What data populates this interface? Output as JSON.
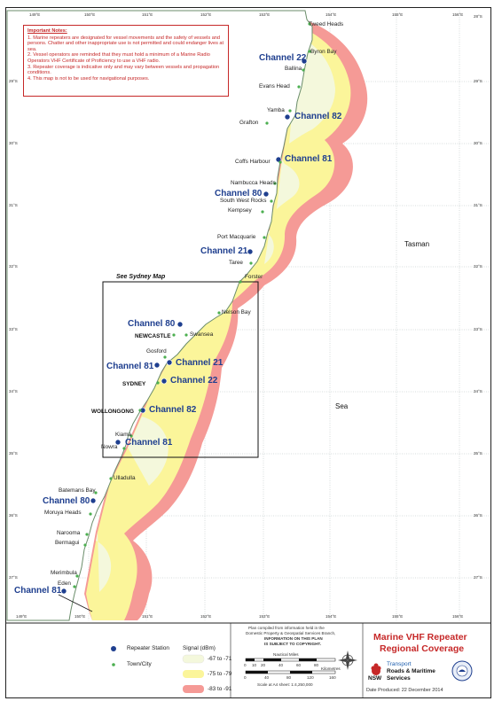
{
  "notes": {
    "heading": "Important Notes:",
    "items": [
      "1. Marine repeaters are designated for vessel movements and the safety of vessels and persons. Chatter and other inappropriate use is not permitted and could endanger lives at sea.",
      "2. Vessel operators are reminded that they must hold a minimum of a Marine Radio Operators VHF Certificate of Proficiency to use a VHF radio.",
      "3. Repeater coverage is indicative only and may vary between vessels and propagation conditions.",
      "4. This map is not to be used for navigational purposes."
    ]
  },
  "stations": [
    {
      "label": "Channel 22"
    },
    {
      "label": "Channel 82"
    },
    {
      "label": "Channel 81"
    },
    {
      "label": "Channel 80"
    },
    {
      "label": "Channel 21"
    },
    {
      "label": "Channel 80"
    },
    {
      "label": "Channel 81"
    },
    {
      "label": "Channel 21"
    },
    {
      "label": "Channel 22"
    },
    {
      "label": "Channel 82"
    },
    {
      "label": "Channel 81"
    },
    {
      "label": "Channel 80"
    },
    {
      "label": "Channel 81"
    }
  ],
  "towns": [
    "Tweed Heads",
    "Byron Bay",
    "Ballina",
    "Evans Head",
    "Yamba",
    "Grafton",
    "Coffs Harbour",
    "Nambucca Heads",
    "South West Rocks",
    "Kempsey",
    "Port Macquarie",
    "Taree",
    "Forster",
    "Nelson Bay",
    "Swansea",
    "Gosford",
    "Kiama",
    "Nowra",
    "Ulladulla",
    "Batemans Bay",
    "Moruya Heads",
    "Narooma",
    "Bermagui",
    "Merimbula",
    "Eden"
  ],
  "cities": [
    "NEWCASTLE",
    "SYDNEY",
    "WOLLONGONG"
  ],
  "sydney_map_label": "See Sydney Map",
  "sea_labels": {
    "tasman": "Tasman",
    "sea": "Sea"
  },
  "lon_ticks": [
    "149°E",
    "150°E",
    "151°E",
    "152°E",
    "153°E",
    "154°E",
    "155°E",
    "156°E"
  ],
  "lat_ticks": [
    "28°S",
    "29°S",
    "30°S",
    "31°S",
    "32°S",
    "33°S",
    "34°S",
    "35°S",
    "36°S",
    "37°S"
  ],
  "legend": {
    "repeater": "Repeater Station",
    "town": "Town/City",
    "signal_title": "Signal (dBm)",
    "bands": [
      {
        "label": "-67 to -71",
        "color": "#f4f8dc"
      },
      {
        "label": "-75 to -79",
        "color": "#fbf59a"
      },
      {
        "label": "-83 to -91",
        "color": "#f59a96"
      }
    ]
  },
  "credit": {
    "line1": "Plan compiled from information held in the",
    "line2": "Domestic Property & Geospatial Services Branch,",
    "line3": "INFORMATION ON THIS PLAN",
    "line4": "IS SUBJECT TO COPYRIGHT.",
    "scale_title": "Nautical Miles",
    "scale_nm": [
      "0",
      "10",
      "20",
      "40",
      "60",
      "80"
    ],
    "scale_km_unit": "Kilometres",
    "scale_km": [
      "0",
      "40",
      "80",
      "120",
      "160"
    ],
    "scale_note": "Scale at A4 sheet: 1:4,250,000"
  },
  "title": {
    "line1": "Marine VHF Repeater",
    "line2": "Regional Coverage"
  },
  "logo": {
    "nsw": "NSW",
    "agency1": "Transport",
    "agency2": "Roads & Maritime",
    "agency3": "Services"
  },
  "date": "Date Produced: 22 December 2014",
  "colors": {
    "coverage_far": "#f59a96",
    "coverage_mid": "#fbf59a",
    "coverage_near": "#f4f8dc",
    "channel_text": "#1f3f8f",
    "notes_red": "#c62828",
    "title_red": "#c62828"
  }
}
